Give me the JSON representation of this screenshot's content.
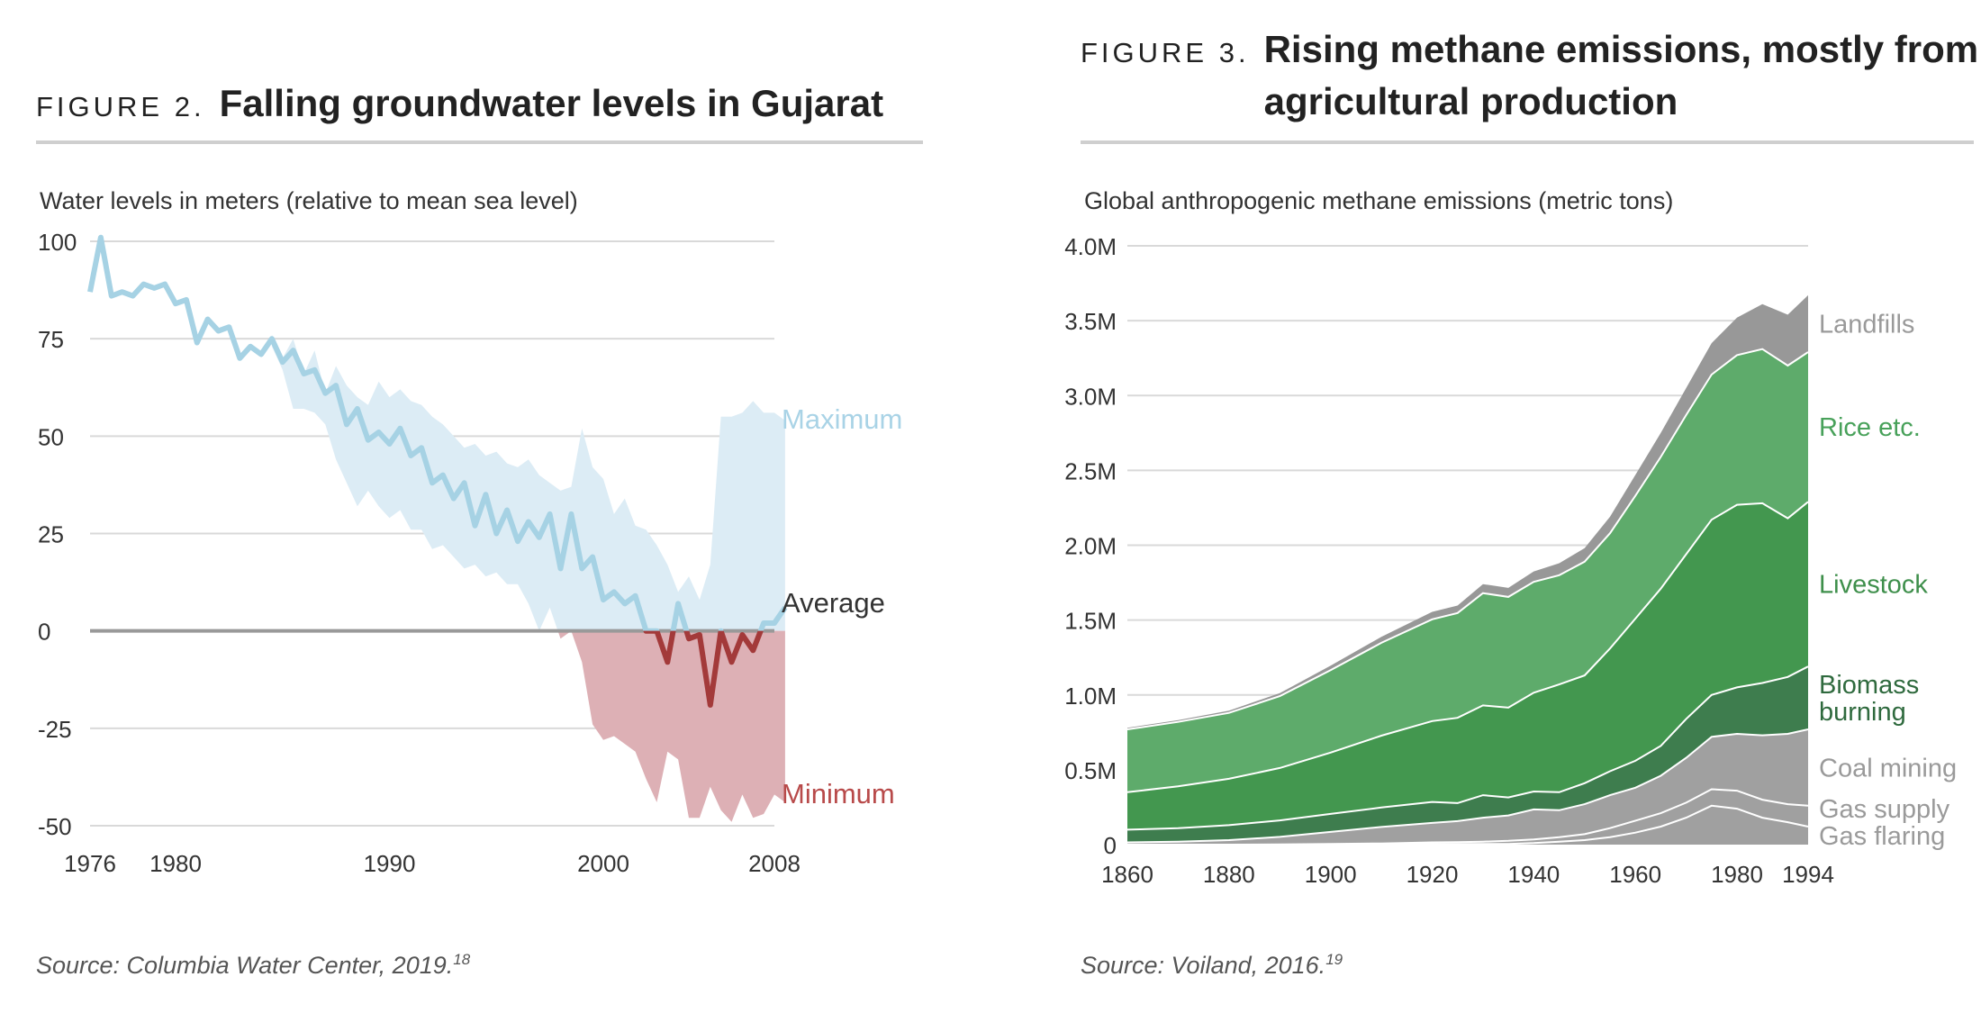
{
  "figures": [
    {
      "label": "FIGURE 2.",
      "title": "Falling groundwater levels in Gujarat",
      "unit_label": "Water levels in meters (relative to mean sea level)",
      "source": "Source: Columbia Water Center, 2019.",
      "source_ref": "18"
    },
    {
      "label": "FIGURE 3.",
      "title": "Rising methane emissions, mostly from agricultural production",
      "unit_label": "Global anthropogenic methane emissions (metric tons)",
      "source": "Source: Voiland, 2016.",
      "source_ref": "19"
    }
  ],
  "chart_data": [
    {
      "type": "line",
      "ylim": [
        -50,
        100
      ],
      "xlim": [
        1976,
        2008
      ],
      "y_ticks": [
        "100",
        "75",
        "50",
        "25",
        "0",
        "-25",
        "-50"
      ],
      "y_tick_values": [
        100,
        75,
        50,
        25,
        0,
        -25,
        -50
      ],
      "x_ticks": [
        "1976",
        "1980",
        "1990",
        "2000",
        "2008"
      ],
      "x_tick_values": [
        1976,
        1980,
        1990,
        2000,
        2008
      ],
      "series_labels": {
        "maximum": "Maximum",
        "average": "Average",
        "minimum": "Minimum"
      },
      "colors": {
        "maximum": "#a9d3e6",
        "band": "#dcecf5",
        "below": "#ddb0b5",
        "average_pos": "#a6d2e4",
        "average_neg": "#a33a3a",
        "zero_line": "#999999",
        "minimum": "#b84a4a"
      },
      "x": [
        1976.0,
        1976.5,
        1977.0,
        1977.5,
        1978.0,
        1978.5,
        1979.0,
        1979.5,
        1980.0,
        1980.5,
        1981.0,
        1981.5,
        1982.0,
        1982.5,
        1983.0,
        1983.5,
        1984.0,
        1984.5,
        1985.0,
        1985.5,
        1986.0,
        1986.5,
        1987.0,
        1987.5,
        1988.0,
        1988.5,
        1989.0,
        1989.5,
        1990.0,
        1990.5,
        1991.0,
        1991.5,
        1992.0,
        1992.5,
        1993.0,
        1993.5,
        1994.0,
        1994.5,
        1995.0,
        1995.5,
        1996.0,
        1996.5,
        1997.0,
        1997.5,
        1998.0,
        1998.5,
        1999.0,
        1999.5,
        2000.0,
        2000.5,
        2001.0,
        2001.5,
        2002.0,
        2002.5,
        2003.0,
        2003.5,
        2004.0,
        2004.5,
        2005.0,
        2005.5,
        2006.0,
        2006.5,
        2007.0,
        2007.5,
        2008.0,
        2008.5
      ],
      "average": [
        87,
        101,
        86,
        87,
        86,
        89,
        88,
        89,
        84,
        85,
        74,
        80,
        77,
        78,
        70,
        73,
        71,
        75,
        69,
        72,
        66,
        67,
        61,
        63,
        53,
        57,
        49,
        51,
        48,
        52,
        45,
        47,
        38,
        40,
        34,
        38,
        27,
        35,
        25,
        31,
        23,
        28,
        24,
        30,
        16,
        30,
        16,
        19,
        8,
        10,
        7,
        9,
        0,
        0,
        -8,
        7,
        -2,
        -1,
        -19,
        0,
        -8,
        -1,
        -5,
        2,
        2,
        6
      ],
      "maximum": [
        null,
        null,
        null,
        null,
        null,
        null,
        null,
        null,
        null,
        null,
        null,
        null,
        null,
        null,
        null,
        null,
        null,
        76,
        70,
        75,
        66,
        72,
        61,
        68,
        63,
        60,
        58,
        64,
        60,
        62,
        59,
        58,
        55,
        53,
        50,
        47,
        48,
        45,
        46,
        43,
        42,
        44,
        40,
        38,
        36,
        37,
        52,
        42,
        39,
        30,
        34,
        27,
        26,
        22,
        17,
        10,
        14,
        8,
        17,
        55,
        55,
        56,
        59,
        56,
        56,
        54
      ],
      "minimum": [
        null,
        null,
        null,
        null,
        null,
        null,
        null,
        null,
        null,
        null,
        null,
        null,
        null,
        null,
        null,
        null,
        null,
        73,
        67,
        57,
        57,
        56,
        53,
        44,
        38,
        32,
        36,
        32,
        29,
        31,
        26,
        26,
        21,
        22,
        19,
        16,
        17,
        14,
        15,
        12,
        12,
        7,
        0,
        6,
        -2,
        0,
        -8,
        -24,
        -28,
        -27,
        -29,
        -31,
        -38,
        -44,
        -31,
        -33,
        -48,
        -48,
        -40,
        -46,
        -49,
        -42,
        -48,
        -47,
        -42,
        -44
      ]
    },
    {
      "type": "area",
      "stacked": true,
      "ylim": [
        0,
        4.0
      ],
      "xlim": [
        1860,
        1994
      ],
      "y_ticks": [
        "4.0M",
        "3.5M",
        "3.0M",
        "2.5M",
        "2.0M",
        "1.5M",
        "1.0M",
        "0.5M",
        "0"
      ],
      "y_tick_values": [
        4.0,
        3.5,
        3.0,
        2.5,
        2.0,
        1.5,
        1.0,
        0.5,
        0
      ],
      "x_ticks": [
        "1860",
        "1880",
        "1900",
        "1920",
        "1940",
        "1960",
        "1980",
        "1994"
      ],
      "x_tick_values": [
        1860,
        1880,
        1900,
        1920,
        1940,
        1960,
        1980,
        1994
      ],
      "x": [
        1860,
        1870,
        1880,
        1890,
        1900,
        1910,
        1920,
        1925,
        1930,
        1935,
        1940,
        1945,
        1950,
        1955,
        1960,
        1965,
        1970,
        1975,
        1980,
        1985,
        1990,
        1994
      ],
      "series": [
        {
          "name": "Gas flaring",
          "color": "#a0a0a0",
          "label_color": "#9a9a9a",
          "values": [
            0,
            0,
            0,
            0,
            0,
            0,
            0.005,
            0.005,
            0.005,
            0.005,
            0.01,
            0.02,
            0.03,
            0.05,
            0.08,
            0.12,
            0.18,
            0.26,
            0.24,
            0.18,
            0.15,
            0.12
          ]
        },
        {
          "name": "Gas supply",
          "color": "#a0a0a0",
          "label_color": "#9a9a9a",
          "values": [
            0,
            0,
            0,
            0.002,
            0.005,
            0.008,
            0.01,
            0.012,
            0.015,
            0.02,
            0.025,
            0.03,
            0.04,
            0.06,
            0.08,
            0.09,
            0.1,
            0.11,
            0.12,
            0.12,
            0.12,
            0.14
          ]
        },
        {
          "name": "Coal mining",
          "color": "#a0a0a0",
          "label_color": "#9a9a9a",
          "values": [
            0.015,
            0.02,
            0.03,
            0.05,
            0.08,
            0.11,
            0.13,
            0.14,
            0.16,
            0.17,
            0.2,
            0.18,
            0.2,
            0.22,
            0.22,
            0.25,
            0.3,
            0.35,
            0.38,
            0.43,
            0.47,
            0.51
          ]
        },
        {
          "name": "Biomass burning",
          "color": "#3e7d4e",
          "label_color": "#2f6a3e",
          "label": [
            "Biomass",
            "burning"
          ],
          "values": [
            0.085,
            0.09,
            0.1,
            0.11,
            0.12,
            0.13,
            0.14,
            0.12,
            0.15,
            0.12,
            0.12,
            0.12,
            0.14,
            0.16,
            0.18,
            0.2,
            0.26,
            0.28,
            0.31,
            0.35,
            0.38,
            0.42
          ]
        },
        {
          "name": "Livestock",
          "color": "#43974f",
          "label_color": "#3e8f4b",
          "values": [
            0.25,
            0.28,
            0.31,
            0.35,
            0.41,
            0.48,
            0.54,
            0.57,
            0.6,
            0.6,
            0.66,
            0.72,
            0.72,
            0.82,
            0.95,
            1.05,
            1.1,
            1.17,
            1.22,
            1.2,
            1.06,
            1.1
          ]
        },
        {
          "name": "Rice etc.",
          "color": "#5eab6b",
          "label_color": "#48a15a",
          "values": [
            0.42,
            0.43,
            0.44,
            0.48,
            0.55,
            0.62,
            0.68,
            0.7,
            0.75,
            0.74,
            0.74,
            0.73,
            0.76,
            0.77,
            0.82,
            0.88,
            0.93,
            0.97,
            1.0,
            1.03,
            1.02,
            1.0
          ]
        },
        {
          "name": "Landfills",
          "color": "#989898",
          "label_color": "#9a9a9a",
          "values": [
            0.01,
            0.012,
            0.015,
            0.02,
            0.03,
            0.04,
            0.05,
            0.05,
            0.06,
            0.06,
            0.07,
            0.08,
            0.09,
            0.11,
            0.14,
            0.16,
            0.18,
            0.21,
            0.25,
            0.3,
            0.34,
            0.38
          ]
        }
      ]
    }
  ]
}
